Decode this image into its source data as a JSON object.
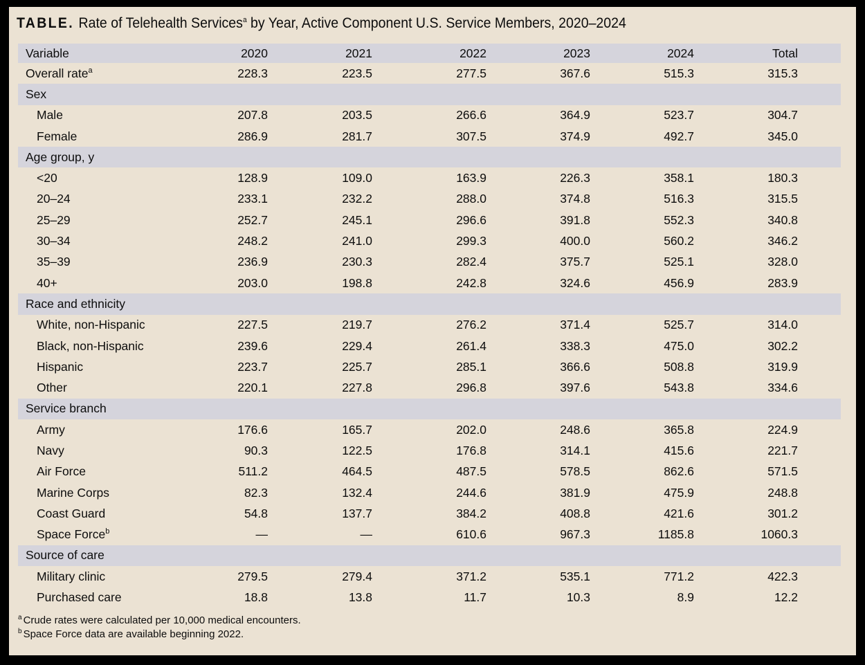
{
  "colors": {
    "frame": "#000000",
    "panel": "#ebe2d3",
    "band": "#d5d4dc",
    "text": "#0d0d0d"
  },
  "title": {
    "prefix": "TABLE.",
    "before_sup": "Rate of Telehealth Services",
    "sup": "a",
    "after_sup": " by Year, Active Component U.S. Service Members, 2020–2024"
  },
  "table": {
    "columns": [
      "Variable",
      "2020",
      "2021",
      "2022",
      "2023",
      "2024",
      "Total"
    ],
    "rows": [
      {
        "type": "data",
        "indent": false,
        "label": "Overall rate",
        "sup": "a",
        "values": [
          "228.3",
          "223.5",
          "277.5",
          "367.6",
          "515.3",
          "315.3"
        ]
      },
      {
        "type": "section",
        "label": "Sex"
      },
      {
        "type": "data",
        "indent": true,
        "label": "Male",
        "values": [
          "207.8",
          "203.5",
          "266.6",
          "364.9",
          "523.7",
          "304.7"
        ]
      },
      {
        "type": "data",
        "indent": true,
        "label": "Female",
        "values": [
          "286.9",
          "281.7",
          "307.5",
          "374.9",
          "492.7",
          "345.0"
        ]
      },
      {
        "type": "section",
        "label": "Age group, y"
      },
      {
        "type": "data",
        "indent": true,
        "label": "<20",
        "values": [
          "128.9",
          "109.0",
          "163.9",
          "226.3",
          "358.1",
          "180.3"
        ]
      },
      {
        "type": "data",
        "indent": true,
        "label": "20–24",
        "values": [
          "233.1",
          "232.2",
          "288.0",
          "374.8",
          "516.3",
          "315.5"
        ]
      },
      {
        "type": "data",
        "indent": true,
        "label": "25–29",
        "values": [
          "252.7",
          "245.1",
          "296.6",
          "391.8",
          "552.3",
          "340.8"
        ]
      },
      {
        "type": "data",
        "indent": true,
        "label": "30–34",
        "values": [
          "248.2",
          "241.0",
          "299.3",
          "400.0",
          "560.2",
          "346.2"
        ]
      },
      {
        "type": "data",
        "indent": true,
        "label": "35–39",
        "values": [
          "236.9",
          "230.3",
          "282.4",
          "375.7",
          "525.1",
          "328.0"
        ]
      },
      {
        "type": "data",
        "indent": true,
        "label": "40+",
        "values": [
          "203.0",
          "198.8",
          "242.8",
          "324.6",
          "456.9",
          "283.9"
        ]
      },
      {
        "type": "section",
        "label": "Race and ethnicity"
      },
      {
        "type": "data",
        "indent": true,
        "label": "White, non-Hispanic",
        "values": [
          "227.5",
          "219.7",
          "276.2",
          "371.4",
          "525.7",
          "314.0"
        ]
      },
      {
        "type": "data",
        "indent": true,
        "label": "Black, non-Hispanic",
        "values": [
          "239.6",
          "229.4",
          "261.4",
          "338.3",
          "475.0",
          "302.2"
        ]
      },
      {
        "type": "data",
        "indent": true,
        "label": "Hispanic",
        "values": [
          "223.7",
          "225.7",
          "285.1",
          "366.6",
          "508.8",
          "319.9"
        ]
      },
      {
        "type": "data",
        "indent": true,
        "label": "Other",
        "values": [
          "220.1",
          "227.8",
          "296.8",
          "397.6",
          "543.8",
          "334.6"
        ]
      },
      {
        "type": "section",
        "label": "Service branch"
      },
      {
        "type": "data",
        "indent": true,
        "label": "Army",
        "values": [
          "176.6",
          "165.7",
          "202.0",
          "248.6",
          "365.8",
          "224.9"
        ]
      },
      {
        "type": "data",
        "indent": true,
        "label": "Navy",
        "values": [
          "90.3",
          "122.5",
          "176.8",
          "314.1",
          "415.6",
          "221.7"
        ]
      },
      {
        "type": "data",
        "indent": true,
        "label": "Air Force",
        "values": [
          "511.2",
          "464.5",
          "487.5",
          "578.5",
          "862.6",
          "571.5"
        ]
      },
      {
        "type": "data",
        "indent": true,
        "label": "Marine Corps",
        "values": [
          "82.3",
          "132.4",
          "244.6",
          "381.9",
          "475.9",
          "248.8"
        ]
      },
      {
        "type": "data",
        "indent": true,
        "label": "Coast Guard",
        "values": [
          "54.8",
          "137.7",
          "384.2",
          "408.8",
          "421.6",
          "301.2"
        ]
      },
      {
        "type": "data",
        "indent": true,
        "label": "Space Force",
        "sup": "b",
        "values": [
          "—",
          "—",
          "610.6",
          "967.3",
          "1185.8",
          "1060.3"
        ]
      },
      {
        "type": "section",
        "label": "Source of care"
      },
      {
        "type": "data",
        "indent": true,
        "label": "Military clinic",
        "values": [
          "279.5",
          "279.4",
          "371.2",
          "535.1",
          "771.2",
          "422.3"
        ]
      },
      {
        "type": "data",
        "indent": true,
        "label": "Purchased care",
        "values": [
          "18.8",
          "13.8",
          "11.7",
          "10.3",
          "8.9",
          "12.2"
        ]
      }
    ]
  },
  "footnotes": [
    {
      "sup": "a",
      "text": "Crude rates were calculated per 10,000 medical encounters."
    },
    {
      "sup": "b",
      "text": "Space Force data are available beginning 2022."
    }
  ]
}
